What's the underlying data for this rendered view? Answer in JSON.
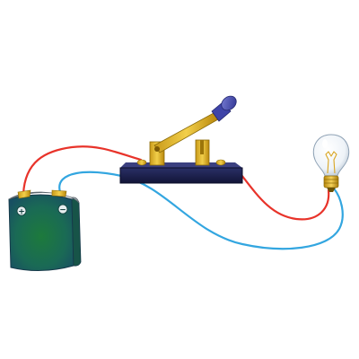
{
  "diagram": {
    "type": "simple-electric-circuit",
    "components": {
      "battery": {
        "positive_label": "+",
        "negative_label": "−"
      },
      "switch": {
        "state": "open"
      },
      "bulb": {
        "state": "off"
      }
    },
    "wires": [
      {
        "id": "red-wire-battery-to-switch",
        "color": "#e8332a"
      },
      {
        "id": "red-wire-switch-to-bulb",
        "color": "#e8332a"
      },
      {
        "id": "blue-wire-battery-to-bulb",
        "color": "#33a6e0"
      }
    ]
  }
}
